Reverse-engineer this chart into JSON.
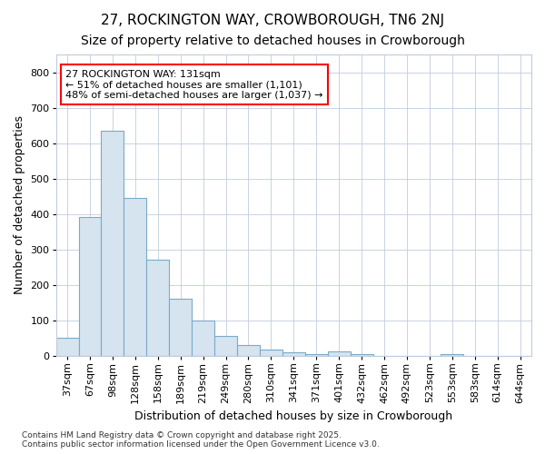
{
  "title": "27, ROCKINGTON WAY, CROWBOROUGH, TN6 2NJ",
  "subtitle": "Size of property relative to detached houses in Crowborough",
  "xlabel": "Distribution of detached houses by size in Crowborough",
  "ylabel": "Number of detached properties",
  "bar_color": "#d6e4f0",
  "bar_edge_color": "#7aaac8",
  "background_color": "#ffffff",
  "grid_color": "#c0ccdd",
  "categories": [
    "37sqm",
    "67sqm",
    "98sqm",
    "128sqm",
    "158sqm",
    "189sqm",
    "219sqm",
    "249sqm",
    "280sqm",
    "310sqm",
    "341sqm",
    "371sqm",
    "401sqm",
    "432sqm",
    "462sqm",
    "492sqm",
    "523sqm",
    "553sqm",
    "583sqm",
    "614sqm",
    "644sqm"
  ],
  "values": [
    50,
    390,
    635,
    445,
    270,
    160,
    100,
    55,
    30,
    18,
    8,
    5,
    12,
    5,
    0,
    0,
    0,
    5,
    0,
    0,
    0
  ],
  "ylim": [
    0,
    850
  ],
  "yticks": [
    0,
    100,
    200,
    300,
    400,
    500,
    600,
    700,
    800
  ],
  "annotation_text": "27 ROCKINGTON WAY: 131sqm\n← 51% of detached houses are smaller (1,101)\n48% of semi-detached houses are larger (1,037) →",
  "vline_x_index": 2,
  "footer_text": "Contains HM Land Registry data © Crown copyright and database right 2025.\nContains public sector information licensed under the Open Government Licence v3.0.",
  "title_fontsize": 11,
  "subtitle_fontsize": 10,
  "axis_label_fontsize": 9,
  "tick_fontsize": 8,
  "annotation_fontsize": 8,
  "footer_fontsize": 6.5
}
